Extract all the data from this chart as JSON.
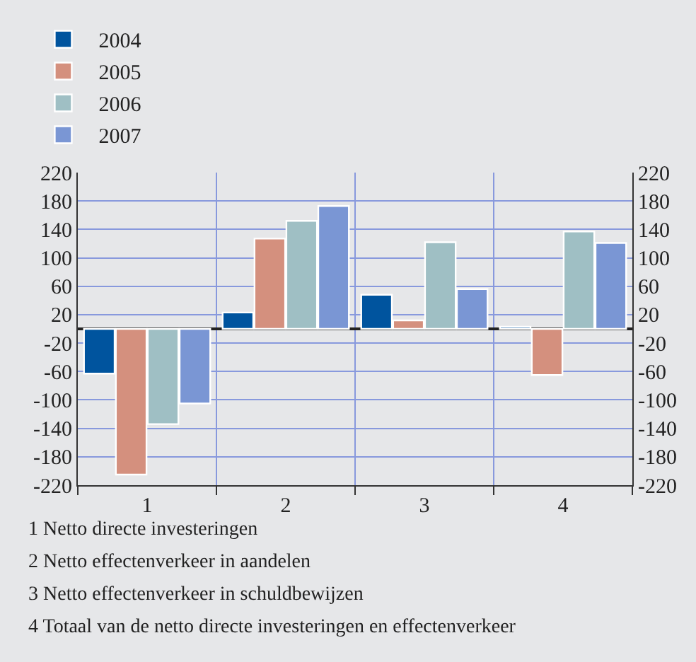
{
  "chart_data": {
    "type": "bar",
    "categories": [
      "1",
      "2",
      "3",
      "4"
    ],
    "series": [
      {
        "name": "2004",
        "color": "#00549e",
        "values": [
          -63,
          23,
          48,
          3
        ]
      },
      {
        "name": "2005",
        "color": "#d4907e",
        "values": [
          -205,
          127,
          12,
          -65
        ]
      },
      {
        "name": "2006",
        "color": "#9fbfc4",
        "values": [
          -134,
          152,
          122,
          137
        ]
      },
      {
        "name": "2007",
        "color": "#7a96d4",
        "values": [
          -105,
          173,
          56,
          121
        ]
      }
    ],
    "ylim": [
      -220,
      220
    ],
    "yticks": [
      220,
      180,
      140,
      100,
      60,
      20,
      -20,
      -60,
      -100,
      -140,
      -180,
      -220
    ],
    "y2lim": [
      -220,
      220
    ],
    "y2ticks": [
      220,
      180,
      140,
      100,
      60,
      20,
      -20,
      -60,
      -100,
      -140,
      -180,
      -220
    ],
    "grid": true,
    "legend": "top left",
    "annotations": [
      "1 Netto directe investeringen",
      "2 Netto effectenverkeer in aandelen",
      "3 Netto effectenverkeer in schuldbewijzen",
      "4 Totaal van de netto directe investeringen en effectenverkeer"
    ]
  }
}
